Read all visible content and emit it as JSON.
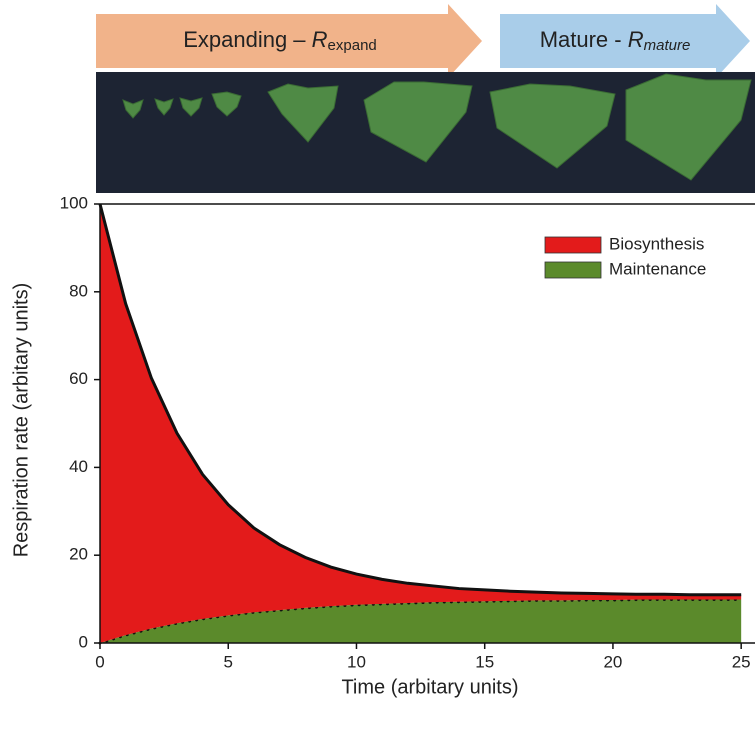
{
  "chart_data": {
    "type": "stacked-area",
    "annotations": [
      {
        "text": "Expanding – ",
        "symbol": "R",
        "subscript": "expand"
      },
      {
        "text": "Mature - ",
        "symbol": "R",
        "subscript": "mature"
      }
    ],
    "x_label": "Time (arbitary units)",
    "y_label": "Respiration rate (arbitary units)",
    "x": [
      0,
      1,
      2,
      3,
      4,
      5,
      6,
      7,
      8,
      9,
      10,
      11,
      12,
      13,
      14,
      15,
      16,
      17,
      18,
      19,
      20,
      21,
      22,
      23,
      24,
      25
    ],
    "series": [
      {
        "name": "Biosynthesis",
        "color": "#e31b1b",
        "values": [
          100,
          75.5,
          57.1,
          43.3,
          32.9,
          25.2,
          19.2,
          14.9,
          11.5,
          8.9,
          7.0,
          5.6,
          4.5,
          3.7,
          3.0,
          2.6,
          2.2,
          1.9,
          1.7,
          1.5,
          1.4,
          1.2,
          1.2,
          1.1,
          1.1,
          1.1
        ]
      },
      {
        "name": "Maintenance",
        "color": "#5b8a2b",
        "values": [
          0,
          1.8,
          3.3,
          4.5,
          5.5,
          6.3,
          7.0,
          7.5,
          8.0,
          8.4,
          8.7,
          8.9,
          9.1,
          9.3,
          9.4,
          9.5,
          9.6,
          9.7,
          9.7,
          9.8,
          9.8,
          9.9,
          9.9,
          9.9,
          9.9,
          9.9
        ]
      }
    ],
    "xlim": [
      0,
      25.5
    ],
    "xticks": [
      0,
      5,
      10,
      15,
      20,
      25
    ],
    "ylim": [
      0,
      100
    ],
    "yticks": [
      0,
      20,
      40,
      60,
      80,
      100
    ],
    "legend": "upper right"
  }
}
